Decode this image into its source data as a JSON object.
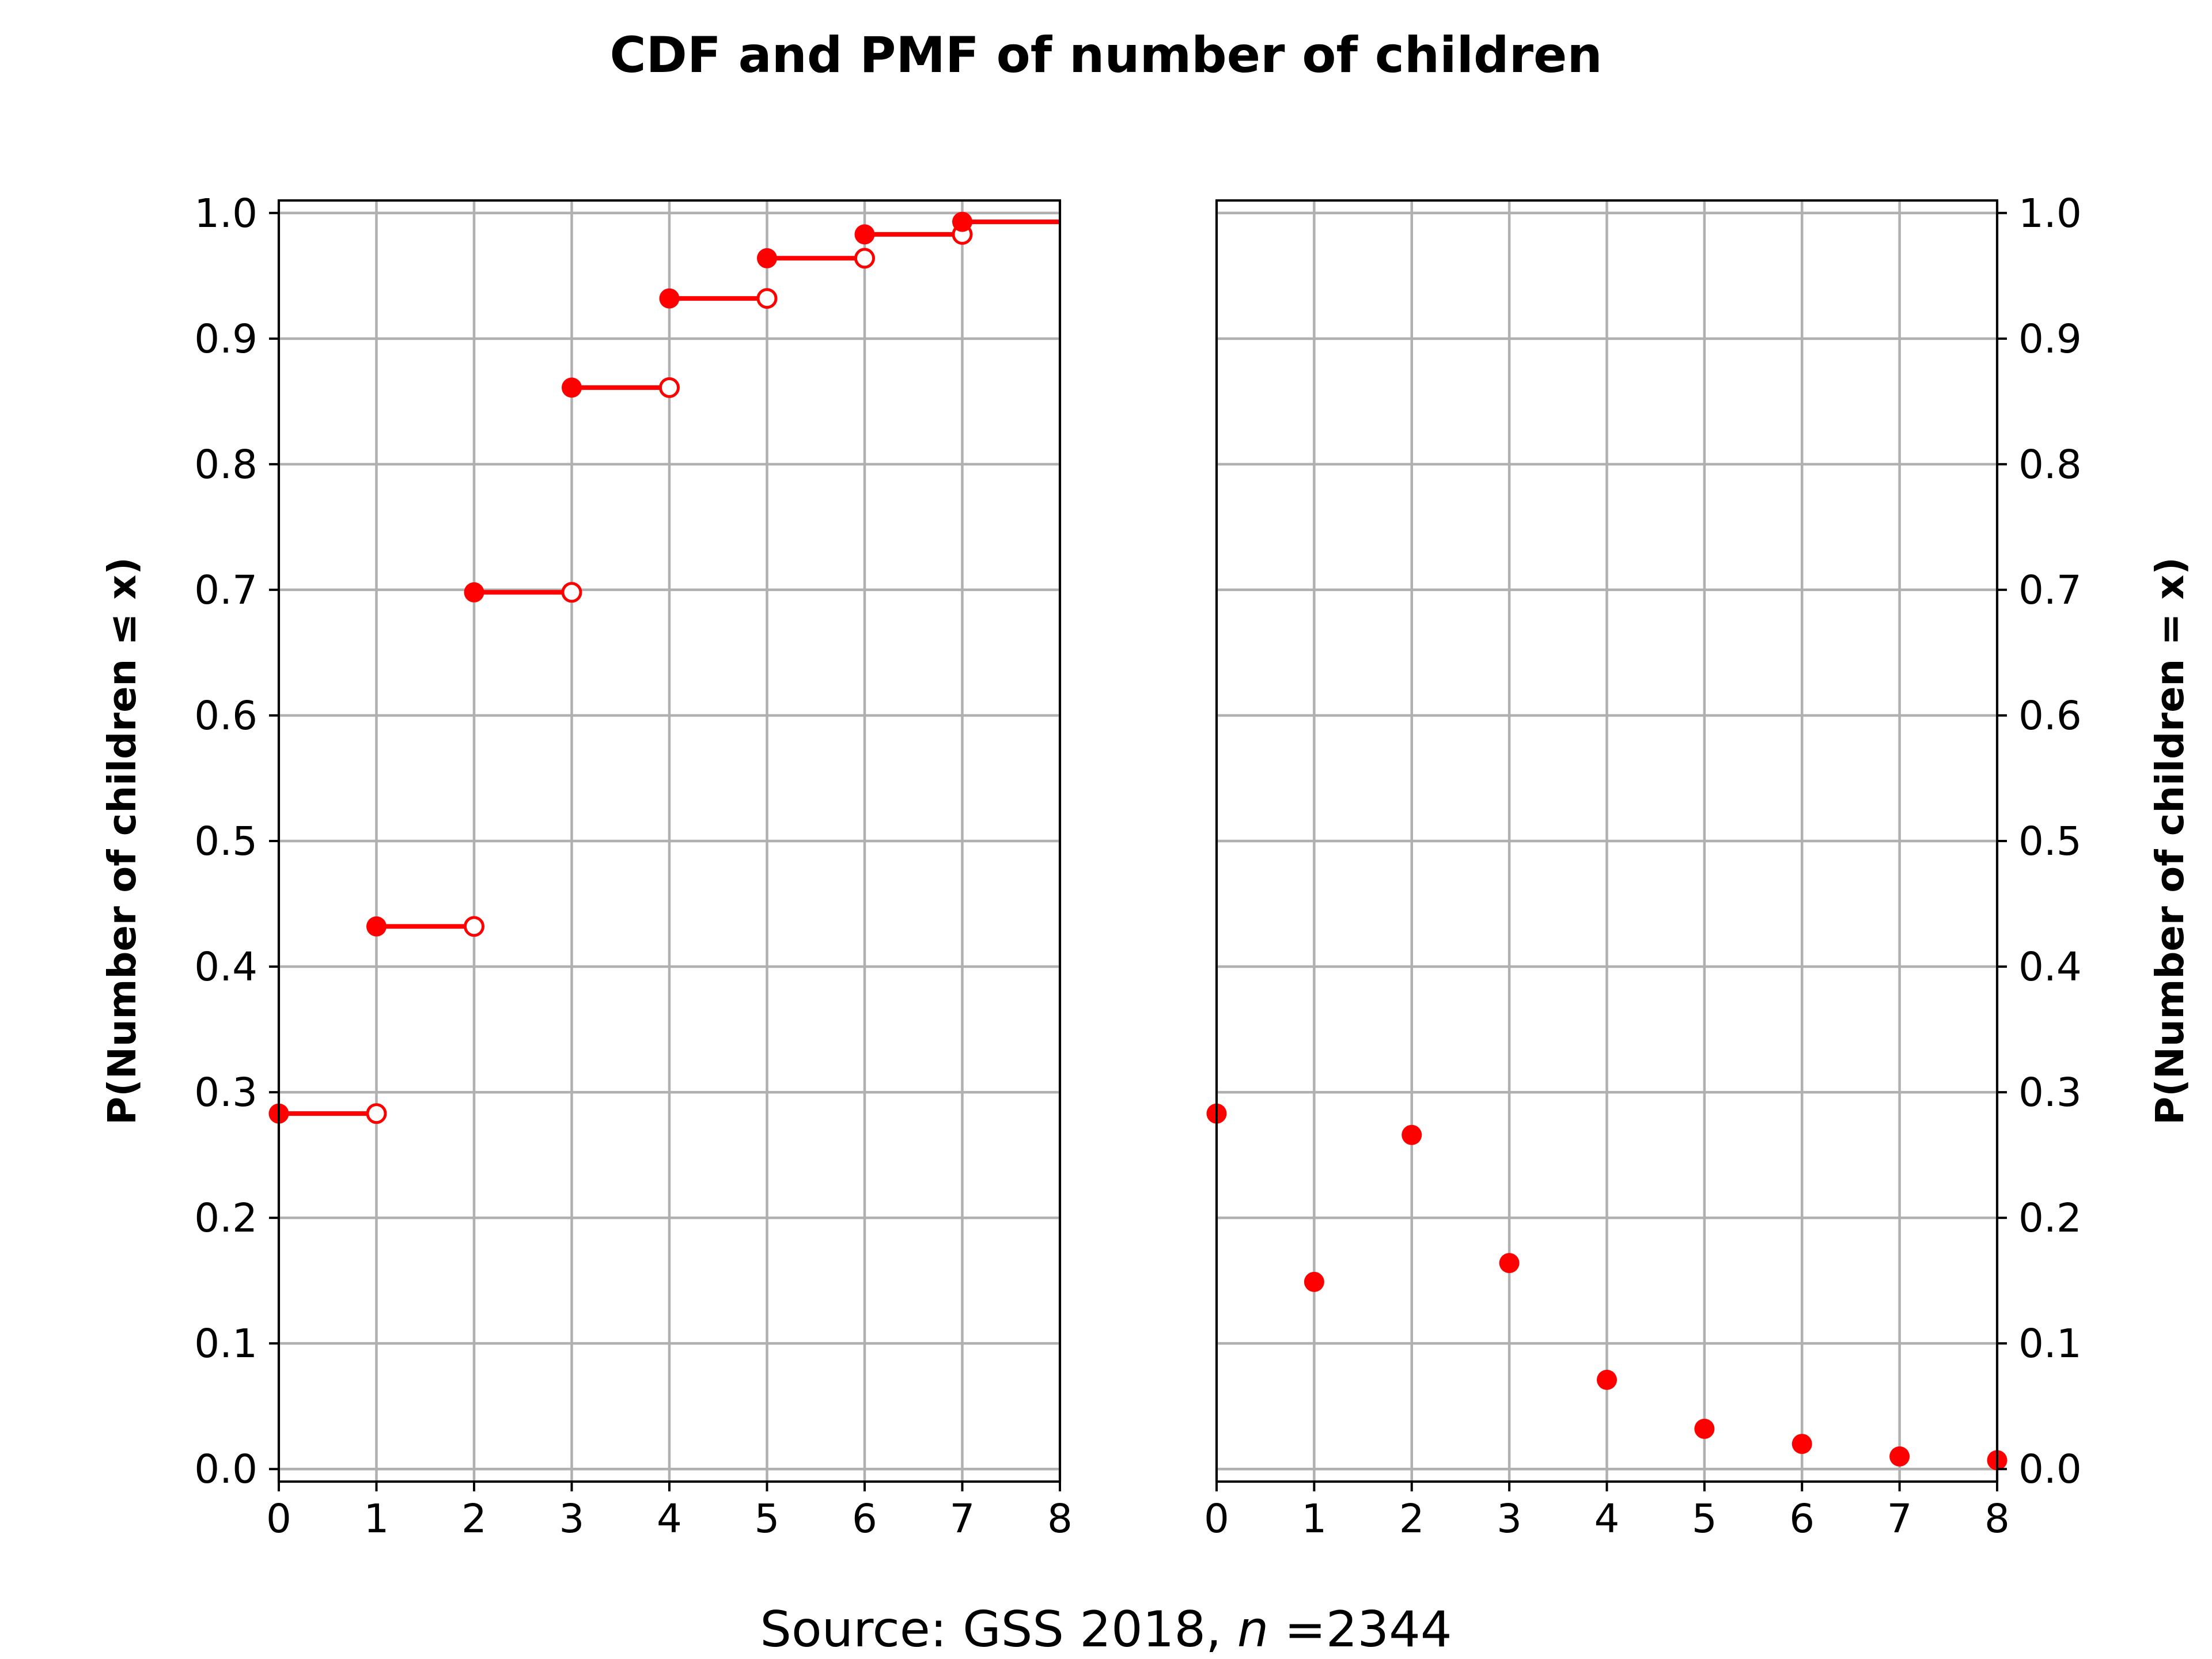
{
  "figure": {
    "title": "CDF and PMF of number of children",
    "caption_prefix": "Source: GSS 2018, ",
    "caption_n_symbol": "n",
    "caption_n_value": " =2344"
  },
  "colors": {
    "marker": "#ff0000",
    "grid": "#b0b0b0",
    "axes": "#000000"
  },
  "chart_data": [
    {
      "type": "line",
      "subtype": "step-cdf",
      "ylabel": "P(Number of children ≤ x)",
      "xlabel": "",
      "xlim": [
        0,
        8
      ],
      "ylim": [
        -0.01,
        1.01
      ],
      "grid": true,
      "x_ticks": [
        "0",
        "1",
        "2",
        "3",
        "4",
        "5",
        "6",
        "7",
        "8"
      ],
      "y_ticks": [
        "0.0",
        "0.1",
        "0.2",
        "0.3",
        "0.4",
        "0.5",
        "0.6",
        "0.7",
        "0.8",
        "0.9",
        "1.0"
      ],
      "y_axis_side": "left",
      "x": [
        0,
        1,
        2,
        3,
        4,
        5,
        6,
        7
      ],
      "y": [
        0.283,
        0.432,
        0.698,
        0.861,
        0.932,
        0.964,
        0.983,
        0.993
      ]
    },
    {
      "type": "scatter",
      "subtype": "pmf",
      "ylabel": "P(Number of children = x)",
      "xlabel": "",
      "xlim": [
        0,
        8
      ],
      "ylim": [
        -0.01,
        1.01
      ],
      "grid": true,
      "x_ticks": [
        "0",
        "1",
        "2",
        "3",
        "4",
        "5",
        "6",
        "7",
        "8"
      ],
      "y_ticks": [
        "0.0",
        "0.1",
        "0.2",
        "0.3",
        "0.4",
        "0.5",
        "0.6",
        "0.7",
        "0.8",
        "0.9",
        "1.0"
      ],
      "y_axis_side": "right",
      "x": [
        0,
        1,
        2,
        3,
        4,
        5,
        6,
        7,
        8
      ],
      "y": [
        0.283,
        0.149,
        0.266,
        0.164,
        0.071,
        0.032,
        0.02,
        0.01,
        0.007
      ]
    }
  ]
}
